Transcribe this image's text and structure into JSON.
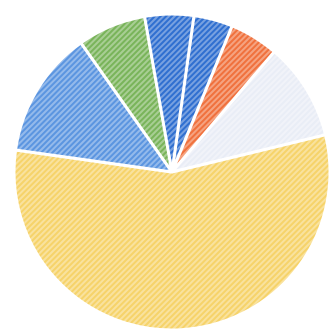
{
  "chart_data": {
    "type": "pie",
    "title": "",
    "legend": "none",
    "start_angle_deg": -82,
    "direction": "clockwise",
    "hatch": "diagonal",
    "slices": [
      {
        "value": 4,
        "color": "#2f6fd0"
      },
      {
        "value": 5,
        "color": "#f0713d"
      },
      {
        "value": 10,
        "color": "#e9edf6"
      },
      {
        "value": 56,
        "color": "#f6d36a"
      },
      {
        "value": 13,
        "color": "#5b95e0"
      },
      {
        "value": 7,
        "color": "#79b45a"
      },
      {
        "value": 5,
        "color": "#2f6fd0"
      }
    ]
  }
}
